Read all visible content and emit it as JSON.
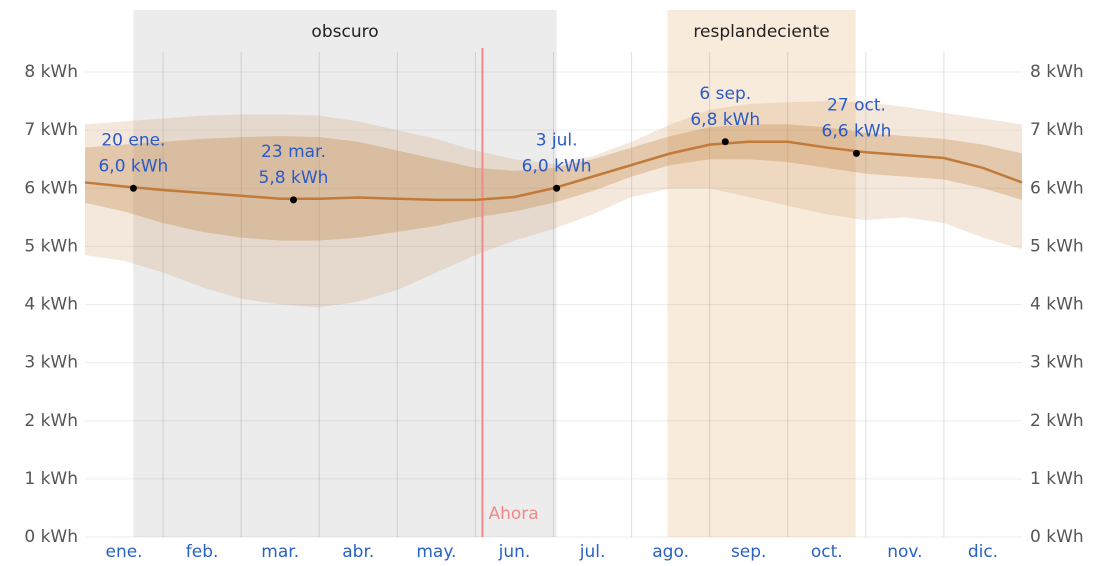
{
  "chart_data": {
    "type": "line",
    "x": [
      0,
      0.5,
      1,
      1.5,
      2,
      2.5,
      3,
      3.5,
      4,
      4.5,
      5,
      5.5,
      6,
      6.5,
      7,
      7.5,
      8,
      8.5,
      9,
      9.5,
      10,
      10.5,
      11,
      11.5,
      12
    ],
    "xlim": [
      0,
      12
    ],
    "xticks": [
      {
        "value": 0.5,
        "label": "ene."
      },
      {
        "value": 1.5,
        "label": "feb."
      },
      {
        "value": 2.5,
        "label": "mar."
      },
      {
        "value": 3.5,
        "label": "abr."
      },
      {
        "value": 4.5,
        "label": "may."
      },
      {
        "value": 5.5,
        "label": "jun."
      },
      {
        "value": 6.5,
        "label": "jul."
      },
      {
        "value": 7.5,
        "label": "ago."
      },
      {
        "value": 8.5,
        "label": "sep."
      },
      {
        "value": 9.5,
        "label": "oct."
      },
      {
        "value": 10.5,
        "label": "nov."
      },
      {
        "value": 11.5,
        "label": "dic."
      }
    ],
    "xgrid": [
      1,
      2,
      3,
      4,
      5,
      6,
      7,
      8,
      9,
      10,
      11
    ],
    "ylim": [
      0,
      8
    ],
    "yticks": [
      {
        "value": 0,
        "label": "0 kWh"
      },
      {
        "value": 1,
        "label": "1 kWh"
      },
      {
        "value": 2,
        "label": "2 kWh"
      },
      {
        "value": 3,
        "label": "3 kWh"
      },
      {
        "value": 4,
        "label": "4 kWh"
      },
      {
        "value": 5,
        "label": "5 kWh"
      },
      {
        "value": 6,
        "label": "6 kWh"
      },
      {
        "value": 7,
        "label": "7 kWh"
      },
      {
        "value": 8,
        "label": "8 kWh"
      }
    ],
    "grid": true,
    "regions": [
      {
        "label": "obscuro",
        "start": 0.62,
        "end": 6.04,
        "color": "#ececec"
      },
      {
        "label": "resplandeciente",
        "start": 7.46,
        "end": 9.87,
        "color": "#f8ebdc"
      }
    ],
    "now": {
      "label": "Ahora",
      "x": 5.09,
      "color": "#f08a8a"
    },
    "bands": [
      {
        "color": "rgba(205,150,95,0.22)",
        "upper": [
          7.1,
          7.15,
          7.2,
          7.25,
          7.27,
          7.27,
          7.25,
          7.15,
          7.0,
          6.85,
          6.65,
          6.5,
          6.42,
          6.55,
          6.8,
          7.1,
          7.35,
          7.45,
          7.48,
          7.5,
          7.48,
          7.4,
          7.3,
          7.2,
          7.1
        ],
        "lower": [
          4.85,
          4.75,
          4.55,
          4.3,
          4.1,
          4.0,
          3.95,
          4.05,
          4.25,
          4.55,
          4.85,
          5.1,
          5.3,
          5.55,
          5.85,
          6.0,
          6.0,
          5.85,
          5.7,
          5.55,
          5.45,
          5.5,
          5.4,
          5.15,
          4.95
        ]
      },
      {
        "color": "rgba(190,125,60,0.3)",
        "upper": [
          6.7,
          6.75,
          6.8,
          6.85,
          6.88,
          6.9,
          6.88,
          6.8,
          6.65,
          6.5,
          6.35,
          6.3,
          6.35,
          6.5,
          6.7,
          6.9,
          7.05,
          7.1,
          7.1,
          7.05,
          6.95,
          6.9,
          6.85,
          6.75,
          6.6
        ],
        "lower": [
          5.75,
          5.6,
          5.4,
          5.25,
          5.15,
          5.1,
          5.1,
          5.15,
          5.25,
          5.35,
          5.5,
          5.6,
          5.75,
          5.95,
          6.2,
          6.4,
          6.5,
          6.5,
          6.45,
          6.35,
          6.25,
          6.2,
          6.15,
          6.0,
          5.8
        ]
      }
    ],
    "color": "#c27a3a",
    "values": [
      6.1,
      6.03,
      5.97,
      5.92,
      5.87,
      5.82,
      5.82,
      5.84,
      5.82,
      5.8,
      5.8,
      5.85,
      6.0,
      6.2,
      6.4,
      6.6,
      6.75,
      6.8,
      6.8,
      6.7,
      6.62,
      6.57,
      6.52,
      6.35,
      6.1
    ],
    "annotations": [
      {
        "date": "20 ene.",
        "x": 0.62,
        "y": 6.0,
        "value_label": "6,0 kWh"
      },
      {
        "date": "23 mar.",
        "x": 2.67,
        "y": 5.8,
        "value_label": "5,8 kWh"
      },
      {
        "date": "3 jul.",
        "x": 6.04,
        "y": 6.0,
        "value_label": "6,0 kWh"
      },
      {
        "date": "6 sep.",
        "x": 8.2,
        "y": 6.8,
        "value_label": "6,8 kWh"
      },
      {
        "date": "27 oct.",
        "x": 9.88,
        "y": 6.6,
        "value_label": "6,6 kWh"
      }
    ]
  }
}
